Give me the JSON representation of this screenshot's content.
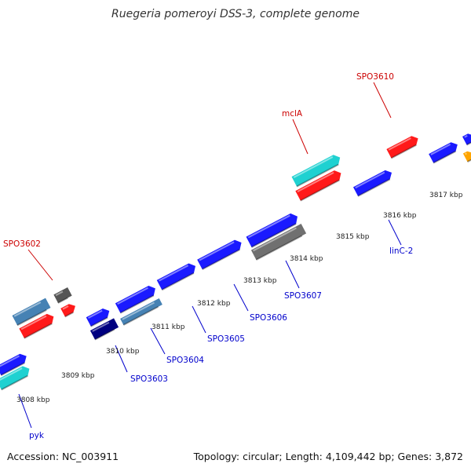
{
  "title": "Ruegeria pomeroyi DSS-3, complete genome",
  "footer": {
    "accession": "Accession: NC_003911",
    "summary": "Topology: circular; Length: 4,109,442 bp; Genes: 3,872"
  },
  "colors": {
    "background": "#ffffff",
    "backbone": "#8c8c8c",
    "tick": "#1a7a1a",
    "gene_blue": "#1a1aff",
    "gene_red": "#ff1a1a",
    "gene_cyan": "#1fd1d1",
    "gene_steel": "#4682b4",
    "gene_navy": "#000080",
    "gene_grey": "#707070",
    "gene_orange": "#ffa500",
    "label_blue": "#0000cc",
    "label_red": "#cc0000"
  },
  "kbp_labels": [
    "3808 kbp",
    "3809 kbp",
    "3810 kbp",
    "3811 kbp",
    "3812 kbp",
    "3813 kbp",
    "3814 kbp",
    "3815 kbp",
    "3816 kbp",
    "3817 kbp"
  ],
  "gene_labels": [
    {
      "id": "pyk",
      "text": "pyk",
      "color": "blue"
    },
    {
      "id": "spo3603",
      "text": "SPO3603",
      "color": "blue"
    },
    {
      "id": "spo3604",
      "text": "SPO3604",
      "color": "blue"
    },
    {
      "id": "spo3605",
      "text": "SPO3605",
      "color": "blue"
    },
    {
      "id": "spo3606",
      "text": "SPO3606",
      "color": "blue"
    },
    {
      "id": "spo3607",
      "text": "SPO3607",
      "color": "blue"
    },
    {
      "id": "linc2",
      "text": "linC-2",
      "color": "blue"
    },
    {
      "id": "spo3602",
      "text": "SPO3602",
      "color": "red"
    },
    {
      "id": "mcla",
      "text": "mclA",
      "color": "red"
    },
    {
      "id": "spo3610",
      "text": "SPO3610",
      "color": "red"
    }
  ]
}
